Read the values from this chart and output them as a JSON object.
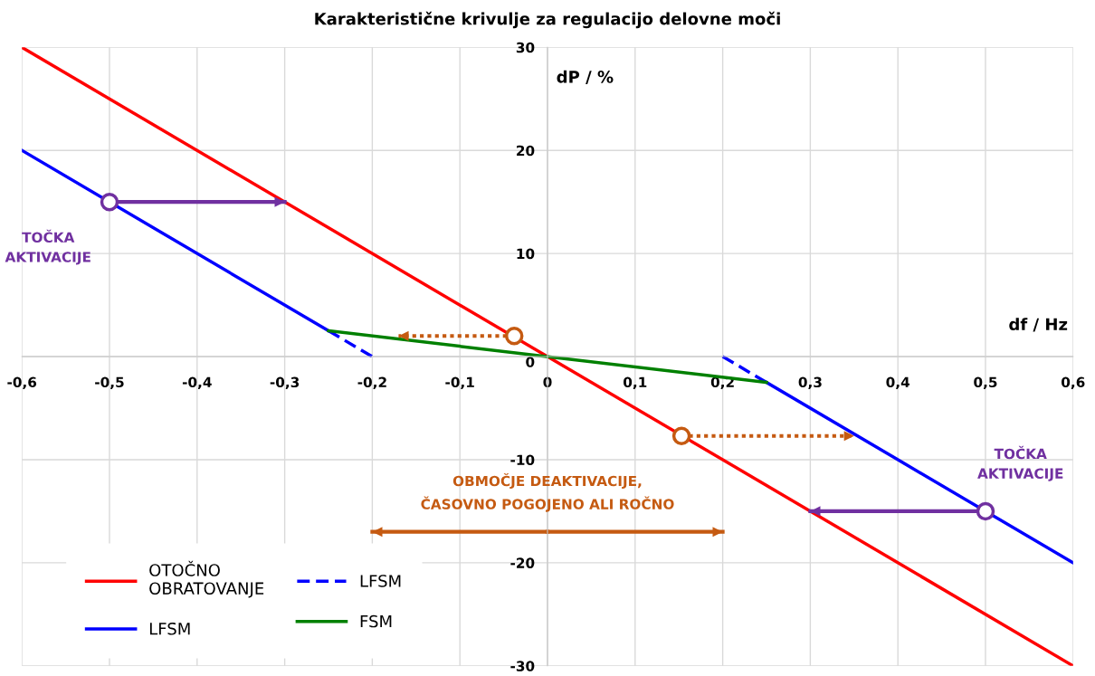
{
  "chart_data": {
    "type": "line",
    "title": "Karakteristične krivulje za regulacijo delovne moči",
    "xlabel": "df / Hz",
    "ylabel": "dP / %",
    "xlim": [
      -0.6,
      0.6
    ],
    "ylim": [
      -30,
      30
    ],
    "xticks": [
      {
        "value": -0.6,
        "label": "-0,6"
      },
      {
        "value": -0.5,
        "label": "-0,5"
      },
      {
        "value": -0.4,
        "label": "-0,4"
      },
      {
        "value": -0.3,
        "label": "-0,3"
      },
      {
        "value": -0.2,
        "label": "-0,2"
      },
      {
        "value": -0.1,
        "label": "-0,1"
      },
      0,
      {
        "value": 0.1,
        "label": "0,1"
      },
      {
        "value": 0.2,
        "label": "0,2"
      },
      {
        "value": 0.3,
        "label": "0,3"
      },
      {
        "value": 0.4,
        "label": "0,4"
      },
      {
        "value": 0.5,
        "label": "0,5"
      },
      {
        "value": 0.6,
        "label": "0,6"
      }
    ],
    "yticks": [
      -30,
      -20,
      -10,
      0,
      10,
      20,
      30
    ],
    "grid": true,
    "legend": "bottom left",
    "series": [
      {
        "name": "OTOČNO\nOBRATOVANJE",
        "color": "#ff0000",
        "x": [
          -0.6,
          0.6
        ],
        "values": [
          30,
          -30
        ]
      },
      {
        "name": "LFSM",
        "color": "#0000ff",
        "x": [
          -0.6,
          -0.25,
          0,
          0.25,
          0.6
        ],
        "values": [
          20,
          2.5,
          null,
          -2.5,
          -20
        ]
      },
      {
        "name": "LFSM",
        "color": "#0000ff",
        "line_style": "dashed",
        "x": [
          -0.25,
          -0.2,
          0,
          0.2,
          0.25
        ],
        "values": [
          2.5,
          0,
          null,
          0,
          -2.5
        ]
      },
      {
        "name": "FSM",
        "color": "#008000",
        "x": [
          -0.25,
          0.25
        ],
        "values": [
          2.5,
          -2.5
        ]
      },
      {
        "type": "line",
        "color": "#7030a0",
        "x": [
          -0.5,
          -0.3
        ],
        "values": [
          15,
          15
        ]
      },
      {
        "type": "line",
        "color": "#7030a0",
        "x": [
          0.5,
          0.3
        ],
        "values": [
          -15,
          -15
        ]
      },
      {
        "type": "line",
        "line_style": "dotted",
        "color": "#c55a11",
        "x": [
          -0.038,
          -0.17
        ],
        "values": [
          2,
          2
        ]
      },
      {
        "type": "line",
        "line_style": "dotted",
        "color": "#c55a11",
        "x": [
          0.153,
          0.35
        ],
        "values": [
          -7.7,
          -7.7
        ]
      },
      {
        "type": "line",
        "color": "#c55a11",
        "x": [
          0,
          -0.2
        ],
        "values": [
          -17,
          -17
        ]
      },
      {
        "type": "line",
        "color": "#c55a11",
        "x": [
          0,
          0.2
        ],
        "values": [
          -17,
          -17
        ]
      },
      {
        "type": "scatter",
        "marker": "circle",
        "color": "#7030a0",
        "x": [
          -0.5,
          0.5
        ],
        "values": [
          15,
          -15
        ]
      },
      {
        "type": "scatter",
        "marker": "circle",
        "color": "#c55a11",
        "x": [
          -0.038,
          0.153
        ],
        "values": [
          2,
          -7.7
        ]
      }
    ],
    "annotations": [
      {
        "text": "TOČKA\nAKTIVACIJE",
        "x": -0.5,
        "y": 15
      },
      {
        "text": "TOČKA\nAKTIVACIJE",
        "x": 0.5,
        "y": -15
      },
      {
        "text": "OBMOČJE DEAKTIVACIJE,\nČASOVNO POGOJENO ALI ROČNO",
        "x": 0,
        "y": -17
      }
    ]
  }
}
